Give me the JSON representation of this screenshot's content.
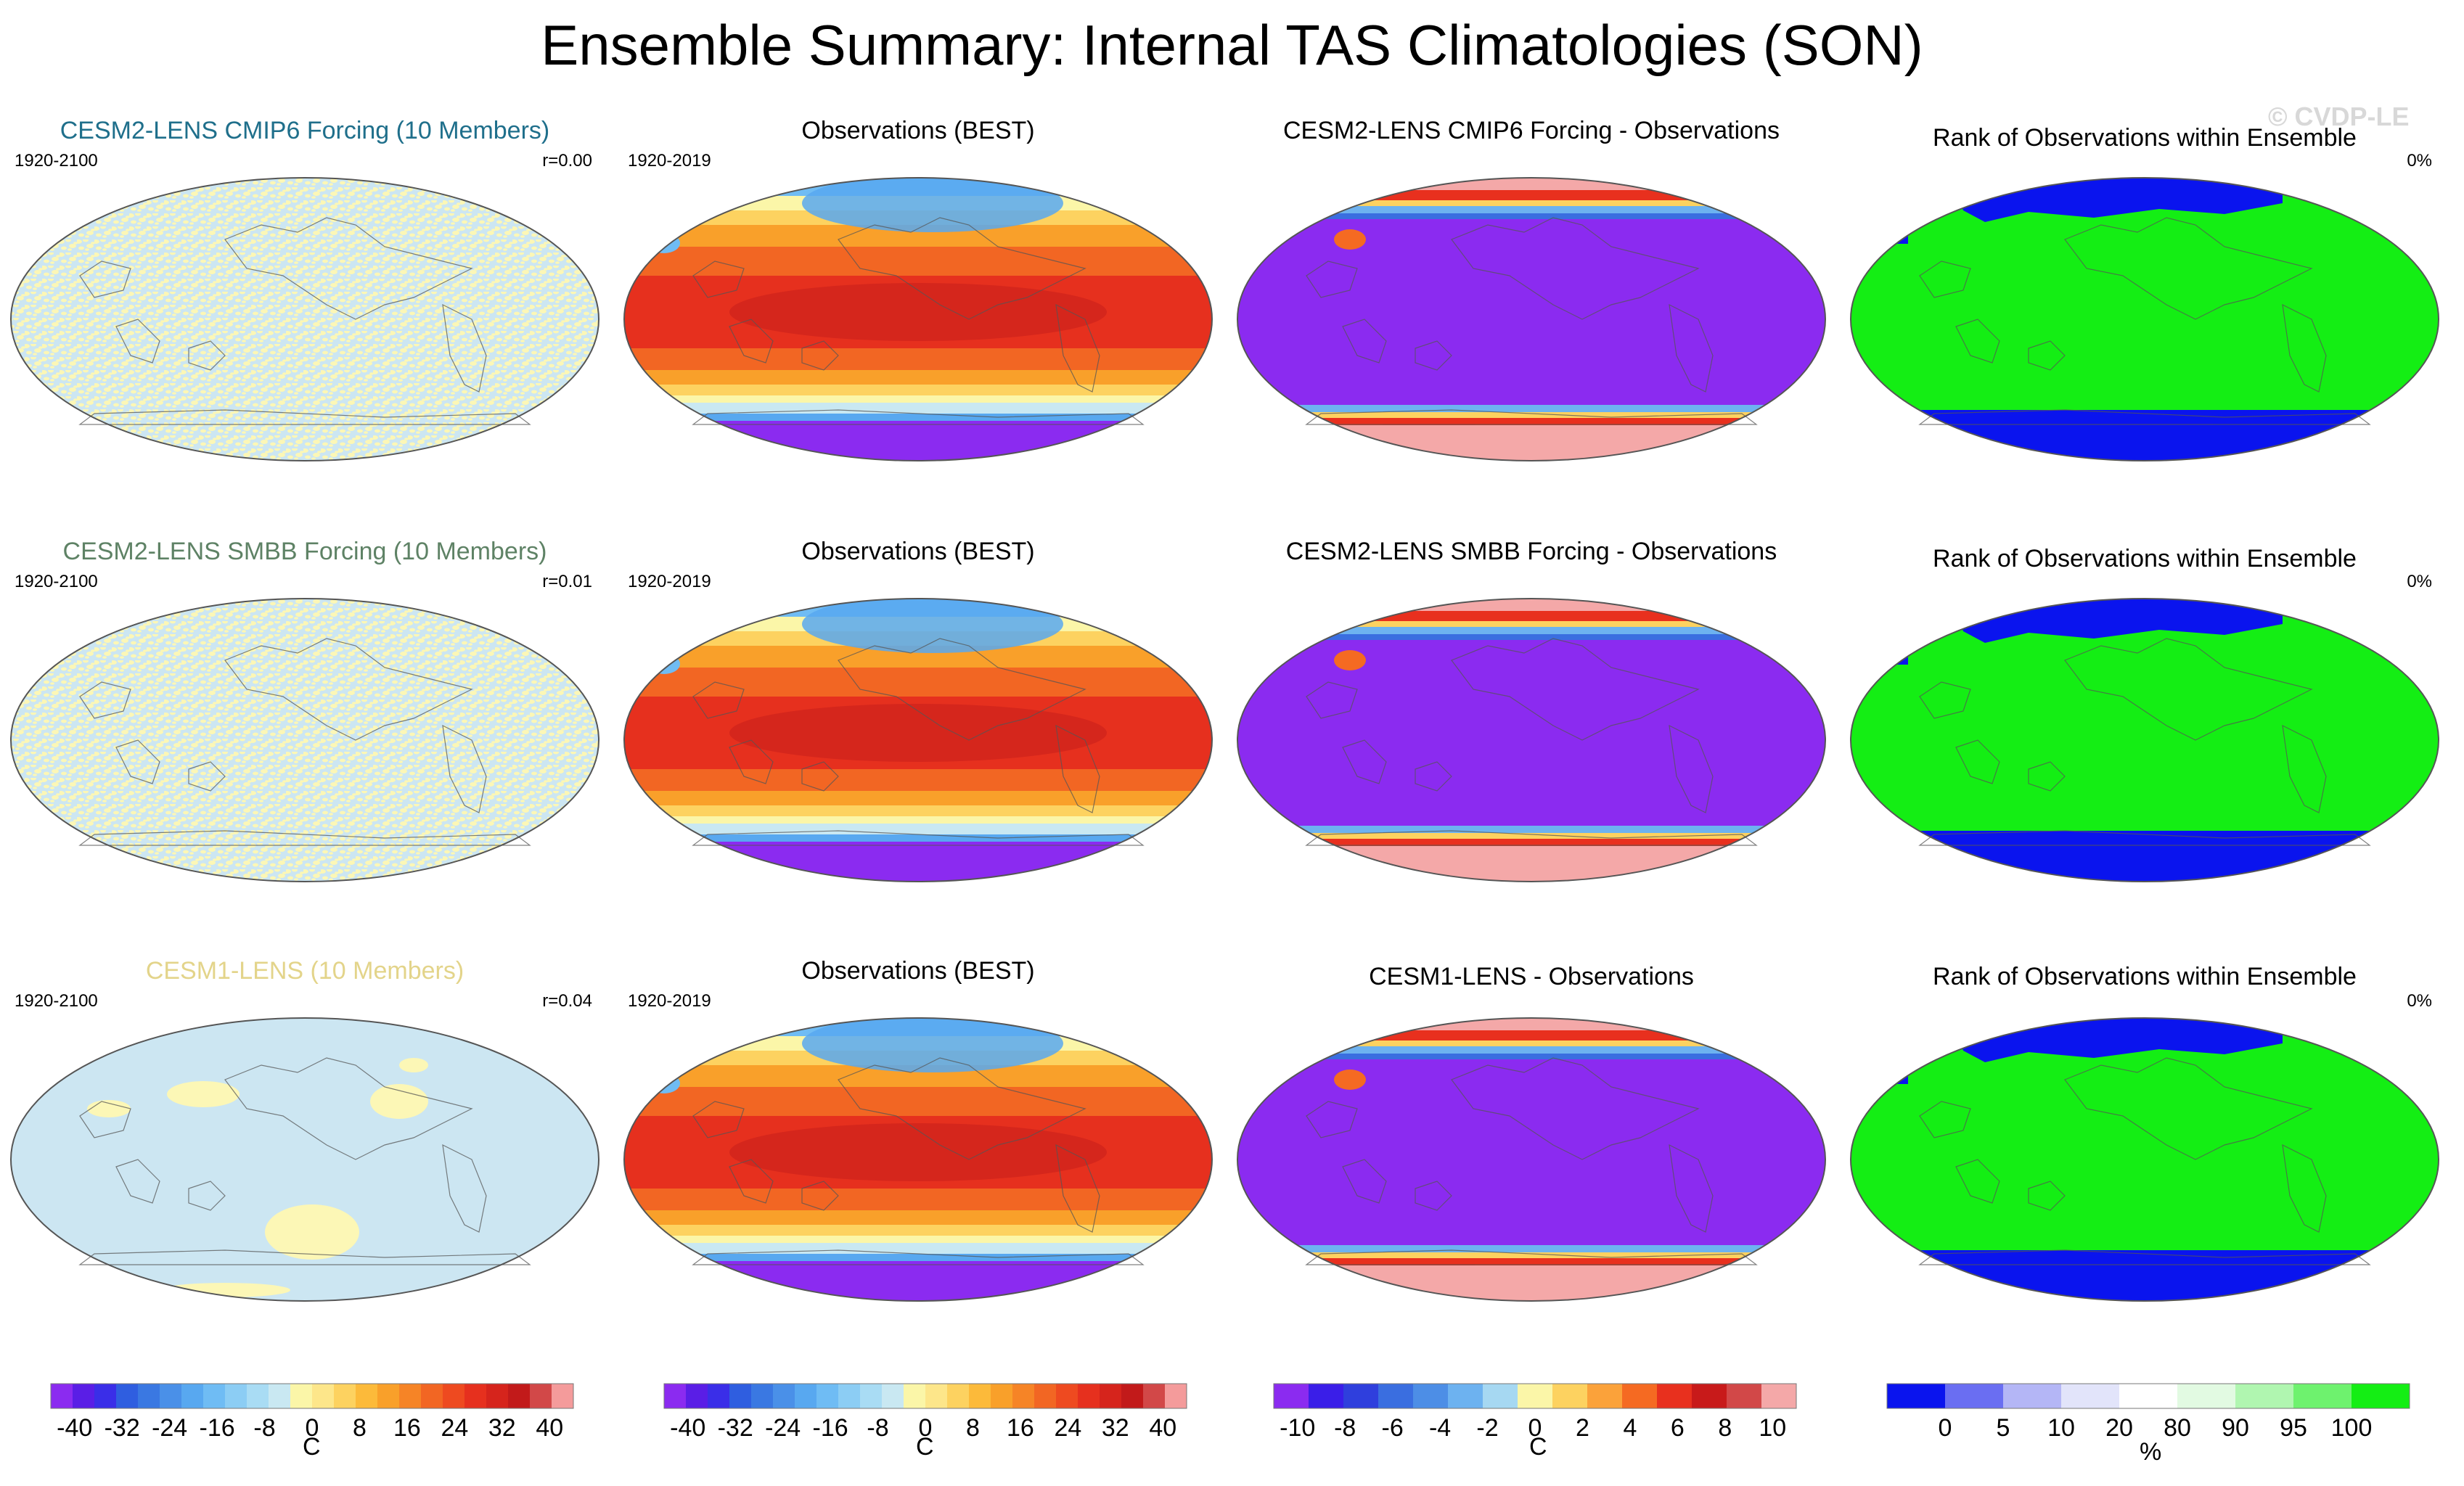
{
  "title": "Ensemble Summary: Internal TAS Climatologies (SON)",
  "watermark": "© CVDP-LE",
  "colors": {
    "model_name_1": "#1f6f8b",
    "model_name_2": "#5e8265",
    "model_name_3": "#e3d48a",
    "noise_a": "#cce6f2",
    "noise_b": "#fcf7b6",
    "land_outline": "#555555"
  },
  "panels": [
    {
      "title": "CESM2-LENS CMIP6 Forcing (10 Members)",
      "left": "1920-2100",
      "right": "r=0.00",
      "kind": "noise",
      "colored_title": "model_name_1"
    },
    {
      "title": "Observations (BEST)",
      "left": "1920-2019",
      "right": "",
      "kind": "obs"
    },
    {
      "title": "CESM2-LENS CMIP6 Forcing - Observations",
      "left": "",
      "right": "",
      "kind": "diff"
    },
    {
      "title": "Rank of Observations within Ensemble",
      "left": "",
      "right": "0%",
      "kind": "rank"
    },
    {
      "title": "CESM2-LENS SMBB Forcing (10 Members)",
      "left": "1920-2100",
      "right": "r=0.01",
      "kind": "noise",
      "colored_title": "model_name_2"
    },
    {
      "title": "Observations (BEST)",
      "left": "1920-2019",
      "right": "",
      "kind": "obs"
    },
    {
      "title": "CESM2-LENS SMBB Forcing - Observations",
      "left": "",
      "right": "",
      "kind": "diff"
    },
    {
      "title": "Rank of Observations within Ensemble",
      "left": "",
      "right": "0%",
      "kind": "rank"
    },
    {
      "title": "CESM1-LENS (10 Members)",
      "left": "1920-2100",
      "right": "r=0.04",
      "kind": "blobs",
      "colored_title": "model_name_3"
    },
    {
      "title": "Observations (BEST)",
      "left": "1920-2019",
      "right": "",
      "kind": "obs"
    },
    {
      "title": "CESM1-LENS - Observations",
      "left": "",
      "right": "",
      "kind": "diff"
    },
    {
      "title": "Rank of Observations within Ensemble",
      "left": "",
      "right": "0%",
      "kind": "rank"
    }
  ],
  "colorbars": [
    {
      "unit": "C",
      "ticks": [
        "-40",
        "-32",
        "-24",
        "-16",
        "-8",
        "0",
        "8",
        "16",
        "24",
        "32",
        "40"
      ],
      "colors": [
        "#8b2bf0",
        "#5a1ee6",
        "#3a2ee8",
        "#2f5ee0",
        "#3a78e2",
        "#4a90e8",
        "#58a8f0",
        "#6fbcf4",
        "#8ccdf4",
        "#a9dcf4",
        "#c9e8f2",
        "#fbf6a8",
        "#fde68a",
        "#fdd260",
        "#fcba3a",
        "#f9a02a",
        "#f68426",
        "#f26623",
        "#ee4a20",
        "#e6301e",
        "#d6241c",
        "#c21a1a",
        "#d24848",
        "#f49b9b"
      ]
    },
    {
      "unit": "C",
      "ticks": [
        "-40",
        "-32",
        "-24",
        "-16",
        "-8",
        "0",
        "8",
        "16",
        "24",
        "32",
        "40"
      ],
      "colors": [
        "#8b2bf0",
        "#5a1ee6",
        "#3a2ee8",
        "#2f5ee0",
        "#3a78e2",
        "#4a90e8",
        "#58a8f0",
        "#6fbcf4",
        "#8ccdf4",
        "#a9dcf4",
        "#c9e8f2",
        "#fbf6a8",
        "#fde68a",
        "#fdd260",
        "#fcba3a",
        "#f9a02a",
        "#f68426",
        "#f26623",
        "#ee4a20",
        "#e6301e",
        "#d6241c",
        "#c21a1a",
        "#d24848",
        "#f49b9b"
      ]
    },
    {
      "unit": "C",
      "ticks": [
        "-10",
        "-8",
        "-6",
        "-4",
        "-2",
        "0",
        "2",
        "4",
        "6",
        "8",
        "10"
      ],
      "colors": [
        "#8b2bf0",
        "#3a1ee8",
        "#2f3fdd",
        "#3a6ee0",
        "#4d8ee6",
        "#6db2f0",
        "#a6d8f2",
        "#fbf6a8",
        "#fdd260",
        "#fba23a",
        "#f56a22",
        "#e8301e",
        "#c81a1a",
        "#d24848",
        "#f4a8a8"
      ]
    },
    {
      "unit": "%",
      "ticks": [
        "0",
        "5",
        "10",
        "20",
        "80",
        "90",
        "95",
        "100"
      ],
      "colors": [
        "#0a14ee",
        "#6a6ef2",
        "#b4b6f6",
        "#e2e4fa",
        "#ffffff",
        "#e2fae2",
        "#b0f6b0",
        "#6ef26e",
        "#14ee14"
      ]
    }
  ]
}
